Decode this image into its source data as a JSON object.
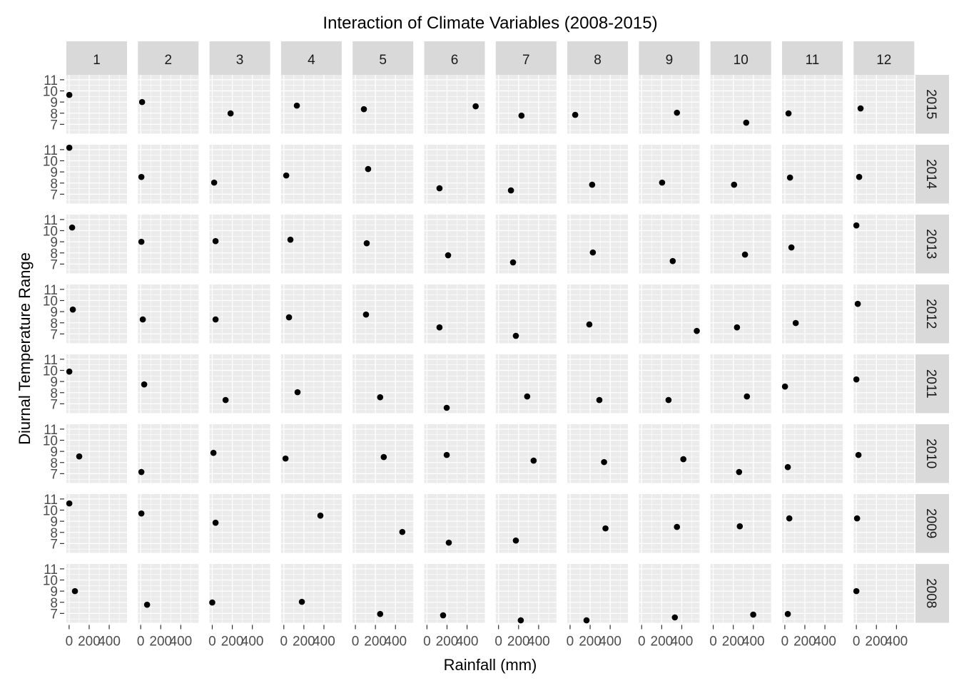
{
  "chart_data": {
    "type": "scatter",
    "title": "Interaction of Climate Variables (2008-2015)",
    "xlabel": "Rainfall (mm)",
    "ylabel": "Diurnal Temperature Range",
    "facet_cols": [
      "1",
      "2",
      "3",
      "4",
      "5",
      "6",
      "7",
      "8",
      "9",
      "10",
      "11",
      "12"
    ],
    "facet_rows": [
      "2015",
      "2014",
      "2013",
      "2012",
      "2011",
      "2010",
      "2009",
      "2008"
    ],
    "xlim": [
      -27.5,
      577.5
    ],
    "ylim": [
      6.16,
      11.44
    ],
    "x_ticks": [
      0,
      200,
      400
    ],
    "x_tick_labels": [
      "0",
      "200",
      "400"
    ],
    "y_ticks": [
      7,
      8,
      9,
      10,
      11
    ],
    "y_tick_labels": [
      "7",
      "8",
      "9",
      "10",
      "11"
    ],
    "grid": true,
    "point_color": "#000000",
    "panel_background": "#EBEBEB",
    "strip_background": "#D9D9D9",
    "points": {
      "2015": [
        [
          2,
          9.64
        ],
        [
          14,
          9.0
        ],
        [
          183,
          7.98
        ],
        [
          130,
          8.68
        ],
        [
          85,
          8.36
        ],
        [
          486,
          8.62
        ],
        [
          229,
          7.78
        ],
        [
          51,
          7.85
        ],
        [
          352,
          8.04
        ],
        [
          329,
          7.15
        ],
        [
          37,
          7.98
        ],
        [
          42,
          8.43
        ]
      ],
      "2014": [
        [
          2,
          11.17
        ],
        [
          7,
          8.55
        ],
        [
          19,
          8.04
        ],
        [
          24,
          8.68
        ],
        [
          127,
          9.26
        ],
        [
          125,
          7.53
        ],
        [
          124,
          7.34
        ],
        [
          220,
          7.85
        ],
        [
          204,
          8.04
        ],
        [
          208,
          7.85
        ],
        [
          52,
          8.49
        ],
        [
          28,
          8.55
        ]
      ],
      "2013": [
        [
          30,
          10.28
        ],
        [
          7,
          9.0
        ],
        [
          33,
          9.06
        ],
        [
          66,
          9.19
        ],
        [
          113,
          8.87
        ],
        [
          211,
          7.79
        ],
        [
          145,
          7.15
        ],
        [
          227,
          8.04
        ],
        [
          310,
          7.27
        ],
        [
          317,
          7.85
        ],
        [
          66,
          8.49
        ],
        [
          0,
          10.47
        ]
      ],
      "2012": [
        [
          37,
          9.19
        ],
        [
          21,
          8.3
        ],
        [
          33,
          8.3
        ],
        [
          52,
          8.49
        ],
        [
          106,
          8.74
        ],
        [
          125,
          7.59
        ],
        [
          173,
          6.83
        ],
        [
          192,
          7.85
        ],
        [
          550,
          7.27
        ],
        [
          237,
          7.59
        ],
        [
          109,
          7.98
        ],
        [
          14,
          9.7
        ]
      ],
      "2011": [
        [
          2,
          9.89
        ],
        [
          35,
          8.74
        ],
        [
          133,
          7.34
        ],
        [
          137,
          8.04
        ],
        [
          247,
          7.59
        ],
        [
          197,
          6.64
        ],
        [
          286,
          7.66
        ],
        [
          292,
          7.34
        ],
        [
          268,
          7.34
        ],
        [
          336,
          7.66
        ],
        [
          2,
          8.55
        ],
        [
          0,
          9.19
        ]
      ],
      "2010": [
        [
          101,
          8.55
        ],
        [
          7,
          7.15
        ],
        [
          12,
          8.87
        ],
        [
          17,
          8.36
        ],
        [
          283,
          8.49
        ],
        [
          197,
          8.68
        ],
        [
          350,
          8.17
        ],
        [
          339,
          8.04
        ],
        [
          416,
          8.3
        ],
        [
          258,
          7.15
        ],
        [
          30,
          7.59
        ],
        [
          21,
          8.68
        ]
      ],
      "2009": [
        [
          2,
          10.6
        ],
        [
          7,
          9.7
        ],
        [
          33,
          8.87
        ],
        [
          365,
          9.51
        ],
        [
          468,
          8.04
        ],
        [
          218,
          7.08
        ],
        [
          173,
          7.27
        ],
        [
          353,
          8.36
        ],
        [
          352,
          8.49
        ],
        [
          265,
          8.55
        ],
        [
          45,
          9.26
        ],
        [
          7,
          9.26
        ]
      ],
      "2008": [
        [
          58,
          9.0
        ],
        [
          64,
          7.78
        ],
        [
          0,
          7.98
        ],
        [
          180,
          8.04
        ],
        [
          247,
          6.95
        ],
        [
          161,
          6.83
        ],
        [
          222,
          6.38
        ],
        [
          164,
          6.38
        ],
        [
          331,
          6.64
        ],
        [
          399,
          6.89
        ],
        [
          30,
          6.95
        ],
        [
          0,
          9.0
        ]
      ]
    }
  }
}
